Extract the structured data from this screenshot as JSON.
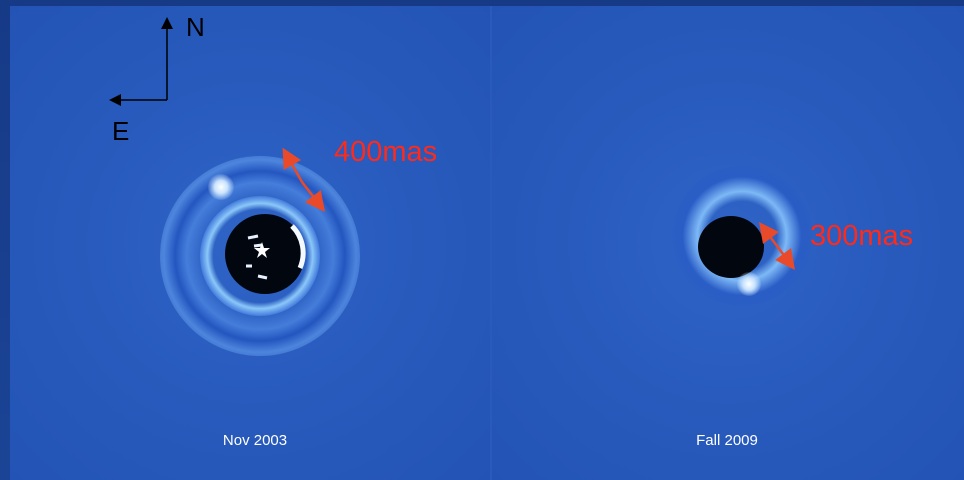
{
  "panels": {
    "left": {
      "caption": "Nov 2003",
      "separation": "400mas"
    },
    "right": {
      "caption": "Fall 2009",
      "separation": "300mas"
    }
  },
  "compass": {
    "north": "N",
    "east": "E"
  },
  "colors": {
    "background": "#2558ba",
    "annotation": "#ff2a1a",
    "arrow": "#e84a2a",
    "caption": "#ffffff",
    "compass": "#000000"
  }
}
